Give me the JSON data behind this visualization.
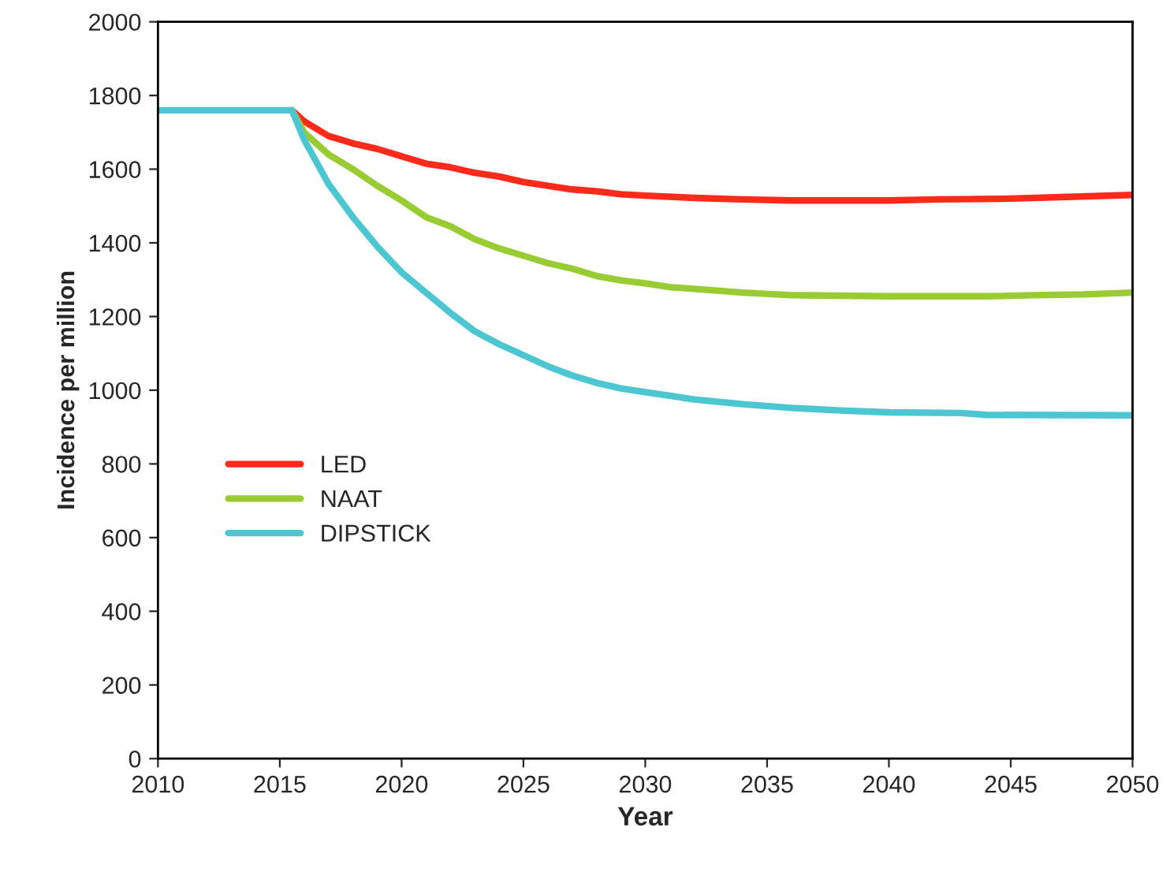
{
  "chart_data": {
    "type": "line",
    "xlabel": "Year",
    "ylabel": "Incidence per million",
    "xlim": [
      2010,
      2050
    ],
    "xticks": [
      2010,
      2015,
      2020,
      2025,
      2030,
      2035,
      2040,
      2045,
      2050
    ],
    "ylim": [
      0,
      2000
    ],
    "yticks": [
      0,
      200,
      400,
      600,
      800,
      1000,
      1200,
      1400,
      1600,
      1800,
      2000
    ],
    "grid": false,
    "legend": "left",
    "marker": "none",
    "line_style": "solid",
    "series": [
      {
        "name": "LED",
        "color": "#ff2a1a",
        "x": [
          2015.5,
          2016,
          2017,
          2018,
          2019,
          2020,
          2021,
          2022,
          2023,
          2024,
          2025,
          2026,
          2027,
          2028,
          2029,
          2030,
          2032,
          2034,
          2036,
          2040,
          2042,
          2045,
          2050
        ],
        "values": [
          1760,
          1730,
          1690,
          1670,
          1655,
          1635,
          1615,
          1605,
          1590,
          1580,
          1565,
          1555,
          1545,
          1540,
          1532,
          1528,
          1522,
          1518,
          1515,
          1515,
          1518,
          1520,
          1530
        ]
      },
      {
        "name": "NAAT",
        "color": "#99cc33",
        "x": [
          2015.5,
          2016,
          2017,
          2018,
          2019,
          2020,
          2021,
          2022,
          2023,
          2024,
          2025,
          2026,
          2027,
          2028,
          2029,
          2030,
          2031,
          2032,
          2034,
          2036,
          2040,
          2044,
          2046,
          2048,
          2050
        ],
        "values": [
          1760,
          1700,
          1640,
          1600,
          1555,
          1515,
          1470,
          1445,
          1410,
          1385,
          1365,
          1345,
          1330,
          1310,
          1298,
          1290,
          1280,
          1275,
          1265,
          1258,
          1255,
          1255,
          1258,
          1260,
          1265
        ]
      },
      {
        "name": "DIPSTICK",
        "color": "#4cc6d0",
        "x": [
          2010,
          2015,
          2015.5,
          2016,
          2017,
          2018,
          2019,
          2020,
          2021,
          2022,
          2023,
          2024,
          2025,
          2026,
          2027,
          2028,
          2029,
          2030,
          2031,
          2032,
          2034,
          2036,
          2038,
          2040,
          2043,
          2044,
          2050
        ],
        "values": [
          1760,
          1760,
          1760,
          1680,
          1560,
          1470,
          1390,
          1320,
          1265,
          1210,
          1160,
          1125,
          1095,
          1065,
          1040,
          1020,
          1005,
          995,
          985,
          975,
          962,
          952,
          945,
          940,
          938,
          933,
          932
        ]
      }
    ]
  }
}
